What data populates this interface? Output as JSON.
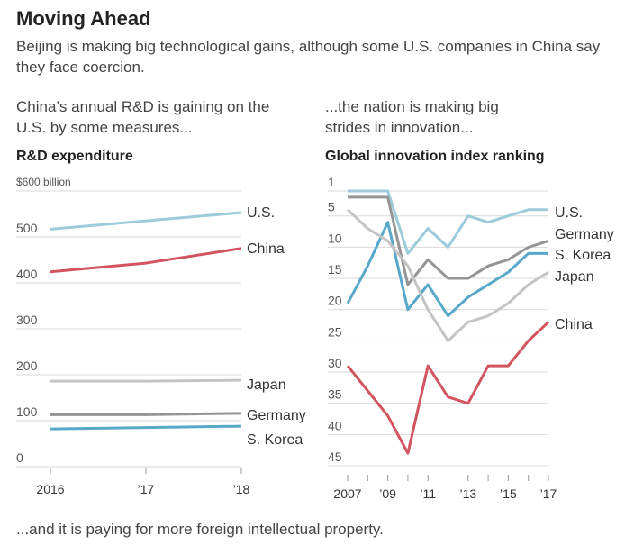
{
  "header": {
    "title": "Moving Ahead",
    "subtitle": "Beijing is making big technological gains, although some U.S. companies in China say they face coercion."
  },
  "left": {
    "intro": "China’s annual R&D is gaining on the U.S. by some measures...",
    "chart_title": "R&D expenditure"
  },
  "right": {
    "intro": "...the nation is making big strides in innovation...",
    "chart_title": "Global innovation index ranking"
  },
  "footer": "...and it is paying for more foreign intellectual property.",
  "chart_data": [
    {
      "type": "line",
      "title": "R&D expenditure",
      "ylim": [
        0,
        600
      ],
      "yticks": [
        0,
        100,
        200,
        300,
        400,
        500
      ],
      "ytick_labels": [
        "0",
        "100",
        "200",
        "300",
        "400",
        "500"
      ],
      "top_label": "$600 billion",
      "x": [
        2016,
        2017,
        2018
      ],
      "xtick_labels": [
        "2016",
        "’17",
        "’18"
      ],
      "grid": true,
      "series": [
        {
          "name": "U.S.",
          "color": "#9ccbdc",
          "values": [
            517,
            535,
            553
          ]
        },
        {
          "name": "China",
          "color": "#d2545f",
          "values": [
            424,
            443,
            475
          ]
        },
        {
          "name": "Japan",
          "color": "#c4c4c4",
          "values": [
            186,
            186,
            188
          ]
        },
        {
          "name": "Germany",
          "color": "#959595",
          "values": [
            113,
            113,
            116
          ]
        },
        {
          "name": "S. Korea",
          "color": "#58a9c9",
          "values": [
            82,
            85,
            88
          ]
        }
      ]
    },
    {
      "type": "line",
      "title": "Global innovation index ranking",
      "ylim": [
        1,
        45
      ],
      "inverted": true,
      "yticks": [
        1,
        5,
        10,
        15,
        20,
        25,
        30,
        35,
        40,
        45
      ],
      "ytick_labels": [
        "1",
        "5",
        "10",
        "15",
        "20",
        "25",
        "30",
        "35",
        "40",
        "45"
      ],
      "x": [
        2007,
        2008,
        2009,
        2010,
        2011,
        2012,
        2013,
        2014,
        2015,
        2016,
        2017
      ],
      "xtick_labels": [
        "2007",
        "’09",
        "’11",
        "’13",
        "’15",
        "’17"
      ],
      "xticks": [
        2007,
        2009,
        2011,
        2013,
        2015,
        2017
      ],
      "grid": true,
      "series": [
        {
          "name": "U.S.",
          "color": "#9ccbdc",
          "values": [
            1,
            1,
            1,
            11,
            7,
            10,
            5,
            6,
            5,
            4,
            4
          ]
        },
        {
          "name": "Germany",
          "color": "#959595",
          "values": [
            2,
            2,
            2,
            16,
            12,
            15,
            15,
            13,
            12,
            10,
            9
          ]
        },
        {
          "name": "S. Korea",
          "color": "#58a9c9",
          "values": [
            19,
            13,
            6,
            20,
            16,
            21,
            18,
            16,
            14,
            11,
            11
          ]
        },
        {
          "name": "Japan",
          "color": "#c4c4c4",
          "values": [
            4,
            7,
            9,
            13,
            20,
            25,
            22,
            21,
            19,
            16,
            14
          ]
        },
        {
          "name": "China",
          "color": "#d2545f",
          "values": [
            29,
            33,
            37,
            43,
            29,
            34,
            35,
            29,
            29,
            25,
            22
          ]
        }
      ]
    }
  ]
}
